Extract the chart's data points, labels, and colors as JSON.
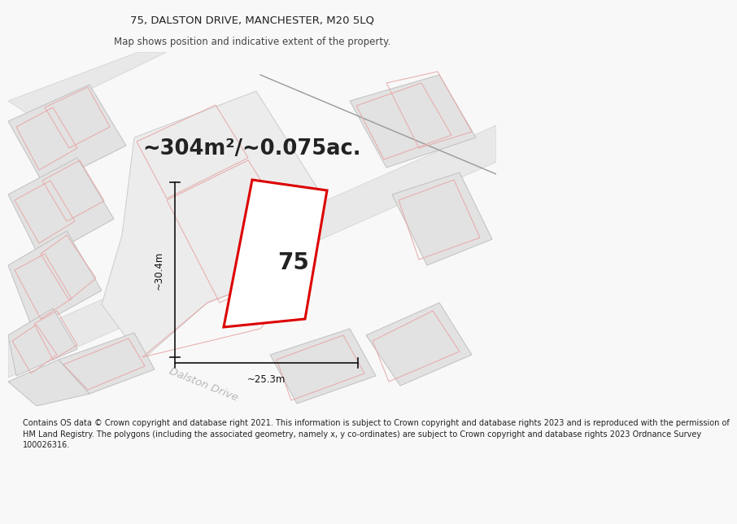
{
  "title_line1": "75, DALSTON DRIVE, MANCHESTER, M20 5LQ",
  "title_line2": "Map shows position and indicative extent of the property.",
  "area_text": "~304m²/~0.075ac.",
  "number_label": "75",
  "dim_vertical": "~30.4m",
  "dim_horizontal": "~25.3m",
  "road_label": "Dalston Drive",
  "footer_text": "Contains OS data © Crown copyright and database right 2021. This information is subject to Crown copyright and database rights 2023 and is reproduced with the permission of\nHM Land Registry. The polygons (including the associated geometry, namely x, y co-ordinates) are subject to Crown copyright and database rights 2023 Ordnance Survey\n100026316.",
  "bg_color": "#f8f8f8",
  "map_bg": "#ffffff",
  "property_color": "#dd0000",
  "pink_line_color": "#e8a8a8",
  "gray_block_color": "#e2e2e2",
  "gray_outline_color": "#c0c0c0"
}
